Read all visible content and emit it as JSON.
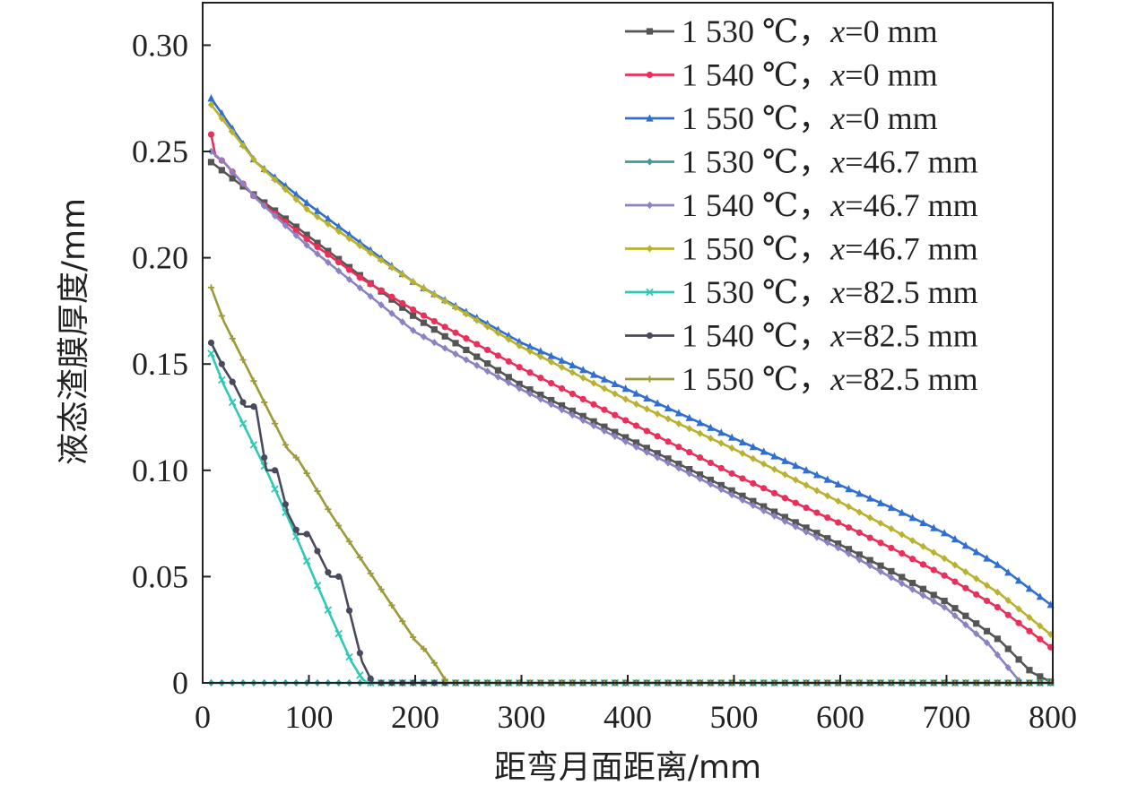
{
  "chart_data": {
    "type": "line",
    "xlabel": "距弯月面距离/mm",
    "ylabel": "液态渣膜厚度/mm",
    "xlim": [
      0,
      800
    ],
    "ylim": [
      0,
      0.32
    ],
    "xticks": [
      "0",
      "100",
      "200",
      "300",
      "400",
      "500",
      "600",
      "700",
      "800"
    ],
    "yticks": [
      "0",
      "0.05",
      "0.10",
      "0.15",
      "0.20",
      "0.25",
      "0.30"
    ],
    "grid": false,
    "legend_position": "top-right",
    "series": [
      {
        "name": "1 530 ℃，x=0 mm",
        "temp": "1 530 ℃，",
        "pos": "=0 mm",
        "color": "#555555",
        "marker": "square",
        "x": [
          8,
          100,
          200,
          300,
          400,
          500,
          600,
          650,
          700,
          750,
          780,
          800
        ],
        "y": [
          0.245,
          0.21,
          0.172,
          0.14,
          0.115,
          0.09,
          0.065,
          0.052,
          0.038,
          0.02,
          0.005,
          0
        ]
      },
      {
        "name": "1 540 ℃，x=0 mm",
        "temp": "1 540 ℃，",
        "pos": "=0 mm",
        "color": "#e8305a",
        "marker": "circle",
        "x": [
          8,
          12,
          20,
          50,
          100,
          150,
          200,
          300,
          400,
          500,
          600,
          650,
          700,
          750,
          800
        ],
        "y": [
          0.258,
          0.248,
          0.245,
          0.228,
          0.208,
          0.19,
          0.175,
          0.148,
          0.123,
          0.098,
          0.075,
          0.063,
          0.05,
          0.035,
          0.016
        ]
      },
      {
        "name": "1 550 ℃，x=0 mm",
        "temp": "1 550 ℃，",
        "pos": "=0 mm",
        "color": "#2f6fd1",
        "marker": "triangle",
        "x": [
          8,
          50,
          100,
          200,
          300,
          400,
          500,
          600,
          650,
          700,
          750,
          800
        ],
        "y": [
          0.275,
          0.245,
          0.225,
          0.188,
          0.16,
          0.138,
          0.115,
          0.093,
          0.082,
          0.07,
          0.055,
          0.036
        ]
      },
      {
        "name": "1 530 ℃，x=46.7 mm",
        "temp": "1 530 ℃，",
        "pos": "=46.7 mm",
        "color": "#3a9e9a",
        "marker": "diamond",
        "x": [
          8,
          160,
          800
        ],
        "y": [
          0,
          0,
          0
        ]
      },
      {
        "name": "1 540 ℃，x=46.7 mm",
        "temp": "1 540 ℃，",
        "pos": "=46.7 mm",
        "color": "#8a83c2",
        "marker": "diamond",
        "x": [
          8,
          20,
          50,
          100,
          200,
          300,
          400,
          500,
          600,
          650,
          700,
          740,
          770,
          800
        ],
        "y": [
          0.25,
          0.245,
          0.228,
          0.205,
          0.165,
          0.138,
          0.113,
          0.088,
          0.063,
          0.049,
          0.035,
          0.018,
          0,
          0
        ]
      },
      {
        "name": "1 550 ℃，x=46.7 mm",
        "temp": "1 550 ℃，",
        "pos": "=46.7 mm",
        "color": "#b9b22e",
        "marker": "diamond",
        "x": [
          8,
          50,
          100,
          200,
          300,
          400,
          500,
          600,
          650,
          700,
          750,
          800
        ],
        "y": [
          0.272,
          0.245,
          0.222,
          0.188,
          0.158,
          0.133,
          0.11,
          0.085,
          0.072,
          0.058,
          0.042,
          0.022
        ]
      },
      {
        "name": "1 530 ℃，x=82.5 mm",
        "temp": "1 530 ℃，",
        "pos": "=82.5 mm",
        "color": "#2ec9b4",
        "marker": "x",
        "x": [
          8,
          20,
          40,
          60,
          80,
          100,
          120,
          140,
          150,
          155,
          800
        ],
        "y": [
          0.155,
          0.14,
          0.12,
          0.1,
          0.078,
          0.055,
          0.032,
          0.01,
          0.002,
          0,
          0
        ]
      },
      {
        "name": "1 540 ℃，x=82.5 mm",
        "temp": "1 540 ℃，",
        "pos": "=82.5 mm",
        "color": "#4a4a5e",
        "marker": "circle",
        "x": [
          8,
          20,
          30,
          40,
          50,
          60,
          70,
          80,
          90,
          100,
          110,
          120,
          130,
          140,
          150,
          160,
          800
        ],
        "y": [
          0.16,
          0.148,
          0.14,
          0.13,
          0.13,
          0.1,
          0.1,
          0.08,
          0.07,
          0.07,
          0.06,
          0.05,
          0.05,
          0.03,
          0.01,
          0,
          0
        ]
      },
      {
        "name": "1 550 ℃，x=82.5 mm",
        "temp": "1 550 ℃，",
        "pos": "=82.5 mm",
        "color": "#9c9a3a",
        "marker": "plus",
        "x": [
          8,
          20,
          30,
          40,
          50,
          60,
          70,
          80,
          90,
          100,
          120,
          140,
          160,
          180,
          200,
          210,
          220,
          230,
          800
        ],
        "y": [
          0.186,
          0.17,
          0.16,
          0.15,
          0.14,
          0.13,
          0.12,
          0.11,
          0.105,
          0.097,
          0.08,
          0.065,
          0.05,
          0.035,
          0.02,
          0.015,
          0.008,
          0,
          0
        ]
      }
    ]
  }
}
